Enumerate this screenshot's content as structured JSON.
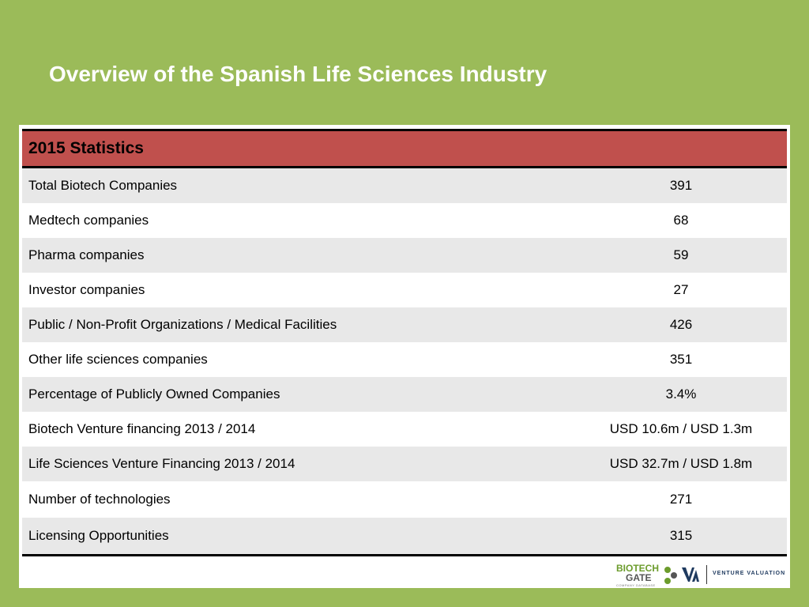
{
  "slide": {
    "title": "Overview of the Spanish Life Sciences Industry"
  },
  "table": {
    "header": "2015 Statistics",
    "rows": [
      {
        "label": "Total Biotech Companies",
        "value": "391"
      },
      {
        "label": "Medtech companies",
        "value": "68"
      },
      {
        "label": "Pharma companies",
        "value": "59"
      },
      {
        "label": "Investor companies",
        "value": "27"
      },
      {
        "label": "Public  / Non-Profit Organizations / Medical Facilities",
        "value": "426"
      },
      {
        "label": "Other life sciences companies",
        "value": "351"
      },
      {
        "label": "Percentage of Publicly Owned Companies",
        "value": "3.4%"
      },
      {
        "label": "Biotech Venture financing 2013 / 2014",
        "value": "USD 10.6m / USD 1.3m"
      },
      {
        "label": "Life Sciences Venture Financing 2013 / 2014",
        "value": "USD 32.7m / USD 1.8m"
      },
      {
        "label": "Number of technologies",
        "value": "271"
      },
      {
        "label": "Licensing Opportunities",
        "value": "315"
      }
    ]
  },
  "logos": {
    "biotechgate_top": "BIOTECH",
    "biotechgate_bottom": "GATE",
    "biotechgate_tagline": "COMPANY DATABASE",
    "venture_valuation": "VENTURE VALUATION"
  },
  "colors": {
    "background": "#9bbb59",
    "header_fill": "#c0504d",
    "row_shade": "#e8e8e8"
  }
}
